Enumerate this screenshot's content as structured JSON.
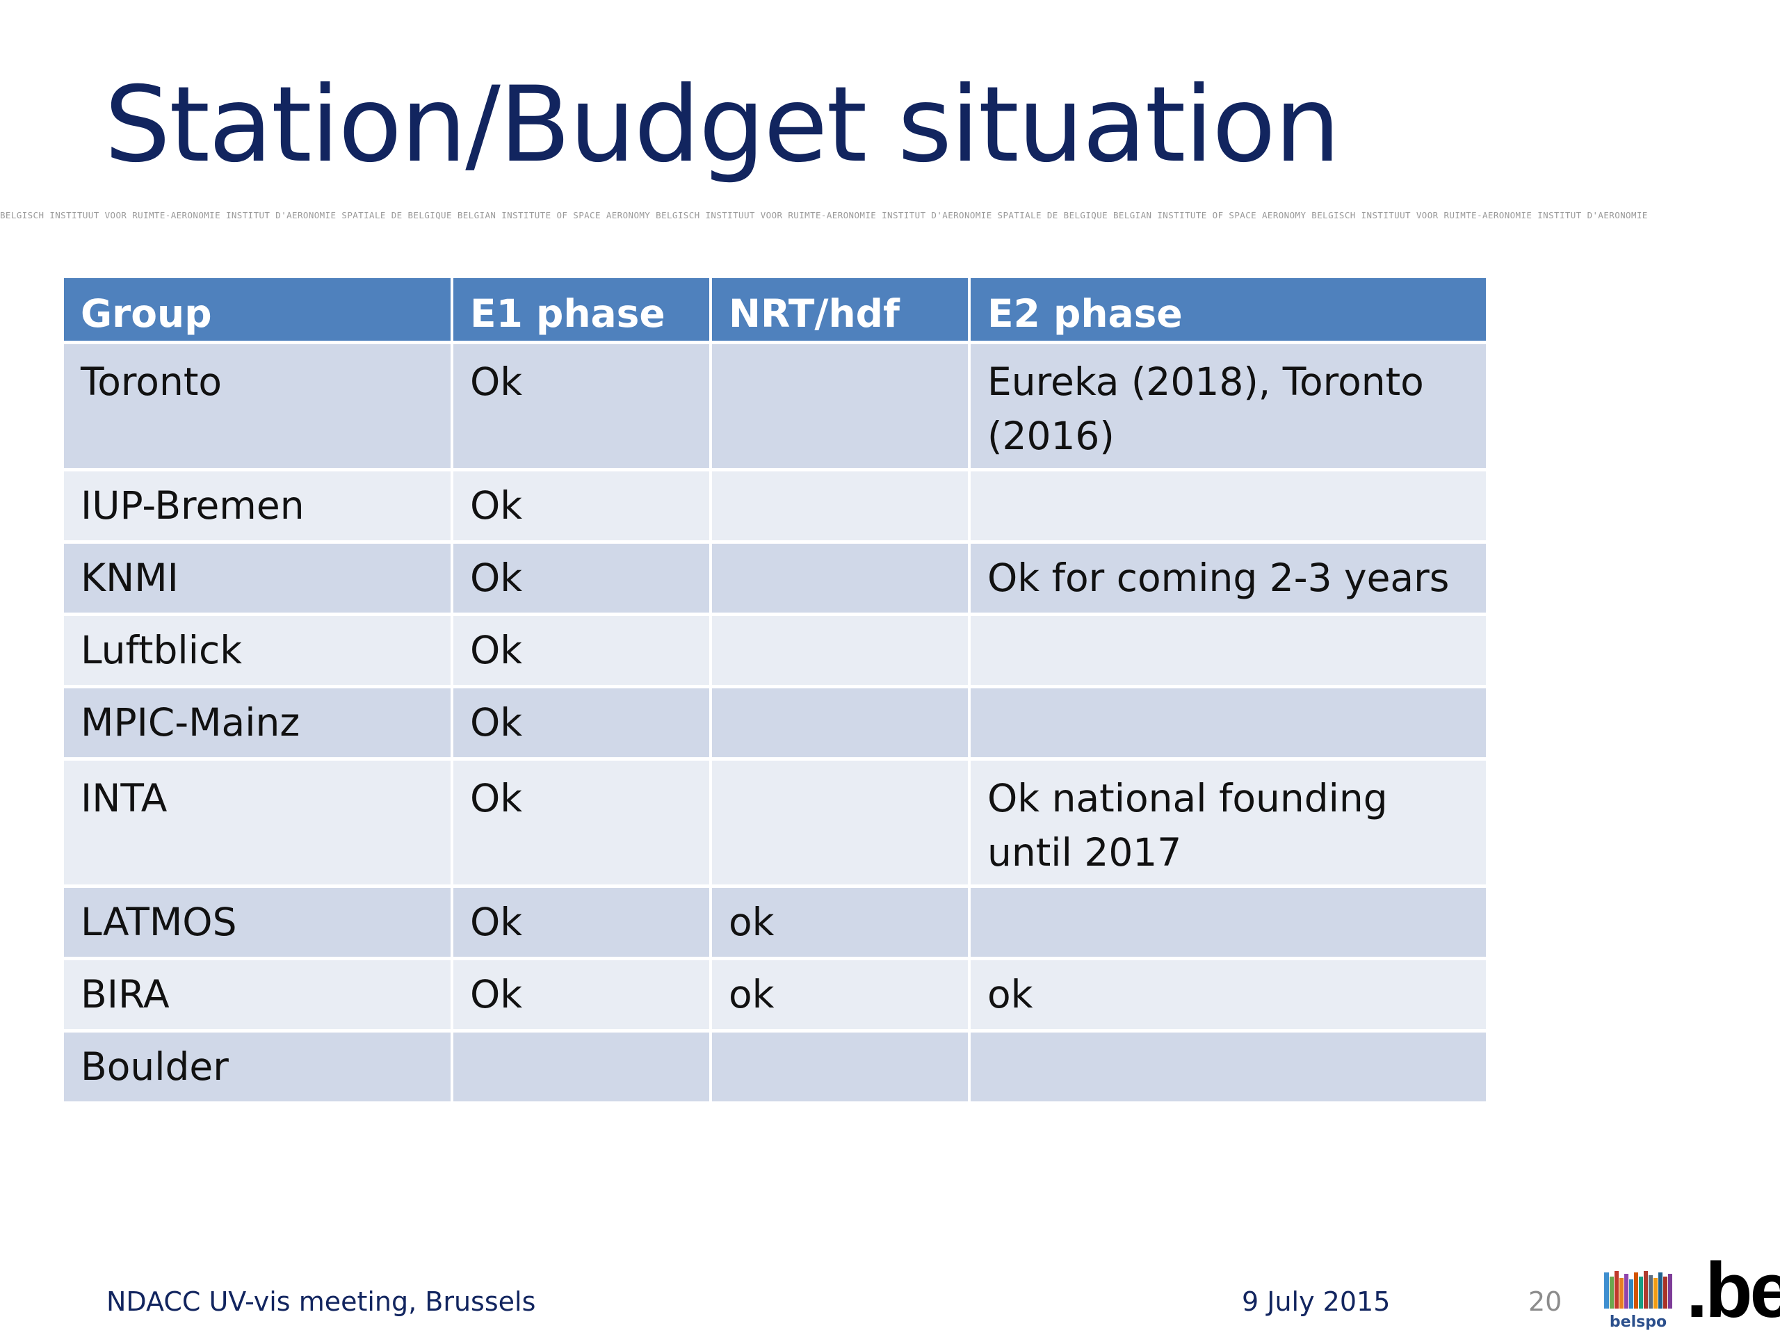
{
  "slide": {
    "title": "Station/Budget situation",
    "institute_band": "BELGISCH INSTITUUT VOOR RUIMTE-AERONOMIE INSTITUT D'AERONOMIE SPATIALE DE BELGIQUE BELGIAN INSTITUTE OF SPACE AERONOMY BELGISCH INSTITUUT VOOR RUIMTE-AERONOMIE INSTITUT D'AERONOMIE SPATIALE DE BELGIQUE BELGIAN INSTITUTE OF SPACE AERONOMY BELGISCH INSTITUUT VOOR RUIMTE-AERONOMIE INSTITUT D'AERONOMIE"
  },
  "table": {
    "headers": [
      "Group",
      "E1 phase",
      "NRT/hdf",
      "E2 phase"
    ],
    "rows": [
      [
        "Toronto",
        "Ok",
        "",
        "Eureka (2018), Toronto (2016)"
      ],
      [
        "IUP-Bremen",
        "Ok",
        "",
        ""
      ],
      [
        "KNMI",
        "Ok",
        "",
        "Ok for coming 2-3 years"
      ],
      [
        "Luftblick",
        "Ok",
        "",
        ""
      ],
      [
        "MPIC-Mainz",
        "Ok",
        "",
        ""
      ],
      [
        "INTA",
        "Ok",
        "",
        "Ok national founding until 2017"
      ],
      [
        "LATMOS",
        "Ok",
        "ok",
        ""
      ],
      [
        "BIRA",
        "Ok",
        "ok",
        "ok"
      ],
      [
        "Boulder",
        "",
        "",
        ""
      ]
    ]
  },
  "footer": {
    "meeting": "NDACC UV-vis meeting, Brussels",
    "date": "9 July 2015",
    "page": "20",
    "logo_belspo": "belspo",
    "logo_be": ".be"
  },
  "colors": {
    "title": "#12255f",
    "header_bg": "#4f81bd",
    "row_odd": "#d0d8e8",
    "row_even": "#e9edf4"
  }
}
